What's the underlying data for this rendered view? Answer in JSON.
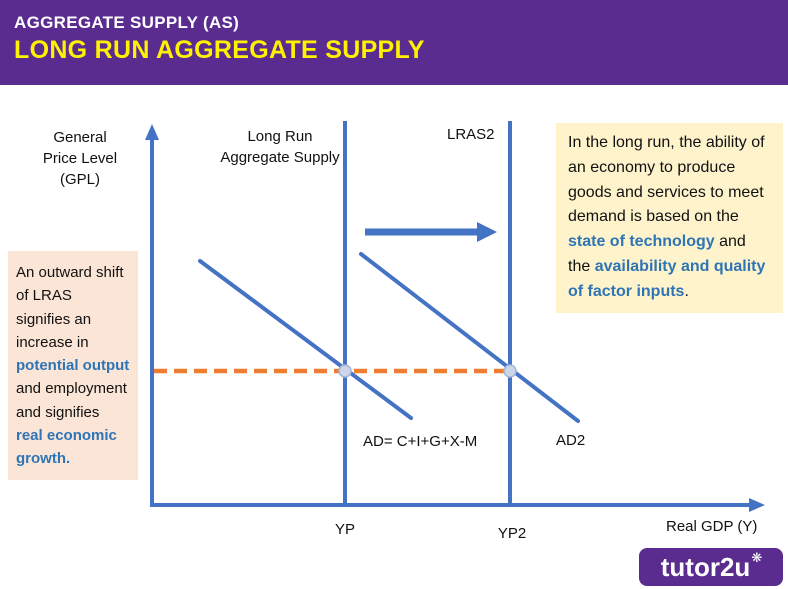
{
  "colors": {
    "brand-purple": "#5b2c90",
    "title-yellow": "#fff200",
    "line-blue": "#4472c4",
    "dash-orange": "#ed7d31",
    "note-left-bg": "#fbe5d6",
    "note-right-bg": "#fff3cc",
    "highlight-blue": "#2e75b6",
    "dot-fill": "#ccd6e8",
    "dot-stroke": "#a3b4d4"
  },
  "header": {
    "title": "AGGREGATE SUPPLY (AS)",
    "subtitle": "LONG RUN AGGREGATE SUPPLY"
  },
  "diagram": {
    "y_axis_label": "General\nPrice Level\n(GPL)",
    "x_axis_label": "Real GDP (Y)",
    "lras1_label": "Long Run\nAggregate Supply",
    "lras2_label": "LRAS2",
    "ad1_label": "AD= C+I+G+X-M",
    "ad2_label": "AD2",
    "yp1_label": "YP",
    "yp2_label": "YP2"
  },
  "left_note": {
    "segments": [
      {
        "text": "An outward shift of LRAS signifies an increase in ",
        "style": "normal"
      },
      {
        "text": "potential output",
        "style": "highlight"
      },
      {
        "text": " and employment and signifies ",
        "style": "normal"
      },
      {
        "text": "real economic growth.",
        "style": "highlight"
      }
    ]
  },
  "right_note": {
    "segments": [
      {
        "text": "In the long run, the ability of an economy to produce goods and services to meet demand is based on the ",
        "style": "normal"
      },
      {
        "text": "state of technology",
        "style": "highlight"
      },
      {
        "text": " and the ",
        "style": "normal"
      },
      {
        "text": "availability and quality of factor inputs",
        "style": "highlight"
      },
      {
        "text": ".",
        "style": "normal"
      }
    ]
  },
  "logo": {
    "text": "tutor2u",
    "flower": "❋"
  }
}
